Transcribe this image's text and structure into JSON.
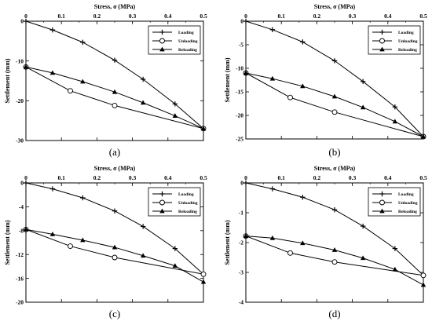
{
  "chart_data": [
    {
      "type": "line",
      "panel_label": "(a)",
      "xlabel": "Stress, σ (MPa)",
      "ylabel": "Settlement (mm)",
      "xlim": [
        0,
        0.5
      ],
      "ylim": [
        -30,
        0
      ],
      "xticks": [
        "0",
        "0.1",
        "0.2",
        "0.3",
        "0.4",
        "0.5"
      ],
      "yticks": [
        "0",
        "-10",
        "-20",
        "-30"
      ],
      "xtick_values": [
        0,
        0.1,
        0.2,
        0.3,
        0.4,
        0.5
      ],
      "ytick_values": [
        0,
        -10,
        -20,
        -30
      ],
      "legend_position": "top-right",
      "series": [
        {
          "name": "Loading",
          "marker": "plus",
          "x": [
            0,
            0.075,
            0.16,
            0.25,
            0.33,
            0.42,
            0.5
          ],
          "y": [
            0,
            -2.2,
            -5.3,
            -9.8,
            -14.6,
            -20.8,
            -27.0
          ]
        },
        {
          "name": "Unloading",
          "marker": "circle",
          "x": [
            0,
            0.125,
            0.25,
            0.5
          ],
          "y": [
            -11.5,
            -17.5,
            -21.2,
            -27.0
          ]
        },
        {
          "name": "Reloading",
          "marker": "triangle",
          "x": [
            0,
            0.075,
            0.16,
            0.25,
            0.33,
            0.42,
            0.5
          ],
          "y": [
            -11.5,
            -13.0,
            -15.2,
            -17.8,
            -20.5,
            -23.8,
            -27.0
          ]
        }
      ]
    },
    {
      "type": "line",
      "panel_label": "(b)",
      "xlabel": "Stress, σ (MPa)",
      "ylabel": "Settlement (mm)",
      "xlim": [
        0,
        0.5
      ],
      "ylim": [
        -25,
        0
      ],
      "xticks": [
        "0",
        "0.1",
        "0.2",
        "0.3",
        "0.4",
        "0.5"
      ],
      "yticks": [
        "0",
        "-5",
        "-10",
        "-15",
        "-20",
        "-25"
      ],
      "xtick_values": [
        0,
        0.1,
        0.2,
        0.3,
        0.4,
        0.5
      ],
      "ytick_values": [
        0,
        -5,
        -10,
        -15,
        -20,
        -25
      ],
      "legend_position": "top-right",
      "series": [
        {
          "name": "Loading",
          "marker": "plus",
          "x": [
            0,
            0.075,
            0.16,
            0.25,
            0.33,
            0.42,
            0.5
          ],
          "y": [
            0,
            -1.8,
            -4.4,
            -8.4,
            -12.8,
            -18.2,
            -24.5
          ]
        },
        {
          "name": "Unloading",
          "marker": "circle",
          "x": [
            0,
            0.125,
            0.25,
            0.5
          ],
          "y": [
            -11.0,
            -16.2,
            -19.3,
            -24.5
          ]
        },
        {
          "name": "Reloading",
          "marker": "triangle",
          "x": [
            0,
            0.075,
            0.16,
            0.25,
            0.33,
            0.42,
            0.5
          ],
          "y": [
            -11.0,
            -12.2,
            -13.8,
            -16.0,
            -18.3,
            -21.3,
            -24.5
          ]
        }
      ]
    },
    {
      "type": "line",
      "panel_label": "(c)",
      "xlabel": "Stress, σ (MPa)",
      "ylabel": "Settlement (mm)",
      "xlim": [
        0,
        0.5
      ],
      "ylim": [
        -20,
        0
      ],
      "xticks": [
        "0",
        "0.1",
        "0.2",
        "0.3",
        "0.4",
        "0.5"
      ],
      "yticks": [
        "0",
        "-4",
        "-8",
        "-12",
        "-16",
        "-20"
      ],
      "xtick_values": [
        0,
        0.1,
        0.2,
        0.3,
        0.4,
        0.5
      ],
      "ytick_values": [
        0,
        -4,
        -8,
        -12,
        -16,
        -20
      ],
      "legend_position": "top-right",
      "series": [
        {
          "name": "Loading",
          "marker": "plus",
          "x": [
            0,
            0.075,
            0.16,
            0.25,
            0.33,
            0.42,
            0.5
          ],
          "y": [
            0,
            -1.0,
            -2.5,
            -4.7,
            -7.3,
            -11.0,
            -15.3
          ]
        },
        {
          "name": "Unloading",
          "marker": "circle",
          "x": [
            0,
            0.125,
            0.25,
            0.5
          ],
          "y": [
            -7.8,
            -10.6,
            -12.5,
            -15.3
          ]
        },
        {
          "name": "Reloading",
          "marker": "triangle",
          "x": [
            0,
            0.075,
            0.16,
            0.25,
            0.33,
            0.42,
            0.5
          ],
          "y": [
            -7.8,
            -8.6,
            -9.6,
            -10.8,
            -12.2,
            -13.9,
            -16.6
          ]
        }
      ]
    },
    {
      "type": "line",
      "panel_label": "(d)",
      "xlabel": "Stress, σ (MPa)",
      "ylabel": "Settlement (mm)",
      "xlim": [
        0,
        0.5
      ],
      "ylim": [
        -4,
        0
      ],
      "xticks": [
        "0",
        "0.1",
        "0.2",
        "0.3",
        "0.4",
        "0.5"
      ],
      "yticks": [
        "0",
        "-1",
        "-2",
        "-3",
        "-4"
      ],
      "xtick_values": [
        0,
        0.1,
        0.2,
        0.3,
        0.4,
        0.5
      ],
      "ytick_values": [
        0,
        -1,
        -2,
        -3,
        -4
      ],
      "legend_position": "top-right",
      "series": [
        {
          "name": "Loading",
          "marker": "plus",
          "x": [
            0,
            0.075,
            0.16,
            0.25,
            0.33,
            0.42,
            0.5
          ],
          "y": [
            0,
            -0.2,
            -0.48,
            -0.9,
            -1.45,
            -2.2,
            -3.1
          ]
        },
        {
          "name": "Unloading",
          "marker": "circle",
          "x": [
            0,
            0.125,
            0.25,
            0.5
          ],
          "y": [
            -1.78,
            -2.35,
            -2.65,
            -3.1
          ]
        },
        {
          "name": "Reloading",
          "marker": "triangle",
          "x": [
            0,
            0.075,
            0.16,
            0.25,
            0.33,
            0.42,
            0.5
          ],
          "y": [
            -1.78,
            -1.85,
            -2.02,
            -2.25,
            -2.52,
            -2.9,
            -3.42
          ]
        }
      ]
    }
  ]
}
